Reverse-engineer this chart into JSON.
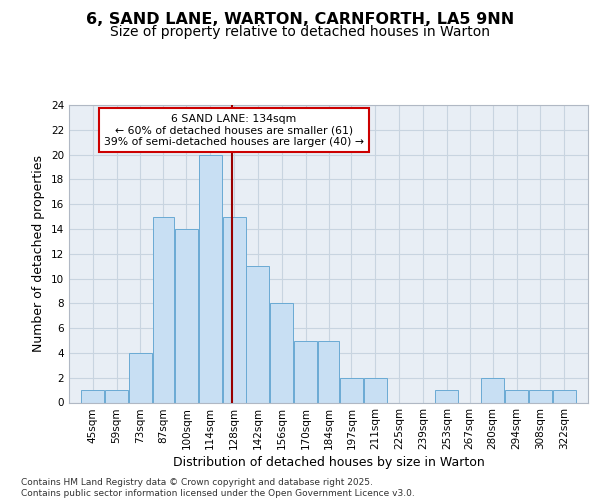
{
  "title": "6, SAND LANE, WARTON, CARNFORTH, LA5 9NN",
  "subtitle": "Size of property relative to detached houses in Warton",
  "xlabel": "Distribution of detached houses by size in Warton",
  "ylabel": "Number of detached properties",
  "categories": [
    "45sqm",
    "59sqm",
    "73sqm",
    "87sqm",
    "100sqm",
    "114sqm",
    "128sqm",
    "142sqm",
    "156sqm",
    "170sqm",
    "184sqm",
    "197sqm",
    "211sqm",
    "225sqm",
    "239sqm",
    "253sqm",
    "267sqm",
    "280sqm",
    "294sqm",
    "308sqm",
    "322sqm"
  ],
  "bin_edges": [
    45,
    59,
    73,
    87,
    100,
    114,
    128,
    142,
    156,
    170,
    184,
    197,
    211,
    225,
    239,
    253,
    267,
    280,
    294,
    308,
    322
  ],
  "values": [
    1,
    1,
    4,
    15,
    14,
    20,
    15,
    11,
    8,
    5,
    5,
    2,
    2,
    0,
    0,
    1,
    0,
    2,
    1,
    1,
    1
  ],
  "bar_color": "#c8dff3",
  "bar_edge_color": "#6aaad4",
  "grid_color": "#c8d4e0",
  "background_color": "#e8eef5",
  "property_line_x": 134,
  "property_line_color": "#990000",
  "annotation_text": "6 SAND LANE: 134sqm\n← 60% of detached houses are smaller (61)\n39% of semi-detached houses are larger (40) →",
  "annotation_box_color": "#ffffff",
  "annotation_box_edge": "#cc0000",
  "ylim": [
    0,
    24
  ],
  "yticks": [
    0,
    2,
    4,
    6,
    8,
    10,
    12,
    14,
    16,
    18,
    20,
    22,
    24
  ],
  "footer": "Contains HM Land Registry data © Crown copyright and database right 2025.\nContains public sector information licensed under the Open Government Licence v3.0.",
  "title_fontsize": 11.5,
  "subtitle_fontsize": 10,
  "tick_fontsize": 7.5,
  "label_fontsize": 9,
  "footer_fontsize": 6.5
}
